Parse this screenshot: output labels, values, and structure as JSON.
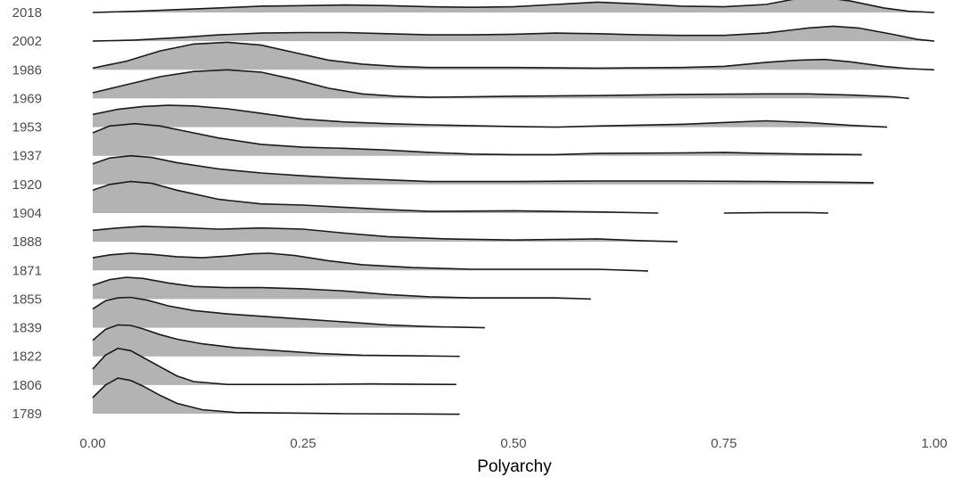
{
  "chart_data": {
    "type": "ridgeline",
    "title": "",
    "xlabel": "Polyarchy",
    "ylabel": "",
    "xlim": [
      0,
      1
    ],
    "x_ticks": [
      {
        "value": 0,
        "label": "0.00"
      },
      {
        "value": 0.25,
        "label": "0.25"
      },
      {
        "value": 0.5,
        "label": "0.50"
      },
      {
        "value": 0.75,
        "label": "0.75"
      },
      {
        "value": 1,
        "label": "1.00"
      }
    ],
    "grid": false,
    "legend": "none",
    "fill_color": "#b3b3b3",
    "line_color": "#1a1a1a",
    "series": [
      {
        "name": "1789",
        "segments": [
          [
            [
              0,
              0.28
            ],
            [
              0.015,
              0.5
            ],
            [
              0.03,
              0.62
            ],
            [
              0.045,
              0.58
            ],
            [
              0.06,
              0.48
            ],
            [
              0.08,
              0.32
            ],
            [
              0.1,
              0.18
            ],
            [
              0.13,
              0.07
            ],
            [
              0.17,
              0.02
            ],
            [
              0.25,
              0.01
            ],
            [
              0.3,
              0.0
            ],
            [
              0.38,
              -0.005
            ],
            [
              0.436,
              -0.01
            ]
          ]
        ]
      },
      {
        "name": "1806",
        "segments": [
          [
            [
              0,
              0.28
            ],
            [
              0.015,
              0.52
            ],
            [
              0.03,
              0.64
            ],
            [
              0.045,
              0.6
            ],
            [
              0.06,
              0.48
            ],
            [
              0.08,
              0.32
            ],
            [
              0.1,
              0.16
            ],
            [
              0.12,
              0.06
            ],
            [
              0.16,
              0.01
            ],
            [
              0.25,
              0.01
            ],
            [
              0.33,
              0.02
            ],
            [
              0.38,
              0.015
            ],
            [
              0.432,
              0.01
            ]
          ]
        ]
      },
      {
        "name": "1822",
        "segments": [
          [
            [
              0,
              0.28
            ],
            [
              0.015,
              0.47
            ],
            [
              0.03,
              0.55
            ],
            [
              0.045,
              0.54
            ],
            [
              0.06,
              0.48
            ],
            [
              0.08,
              0.38
            ],
            [
              0.1,
              0.3
            ],
            [
              0.13,
              0.22
            ],
            [
              0.17,
              0.15
            ],
            [
              0.22,
              0.1
            ],
            [
              0.27,
              0.05
            ],
            [
              0.32,
              0.02
            ],
            [
              0.38,
              0.01
            ],
            [
              0.436,
              0.0
            ]
          ]
        ]
      },
      {
        "name": "1839",
        "segments": [
          [
            [
              0,
              0.33
            ],
            [
              0.015,
              0.47
            ],
            [
              0.03,
              0.52
            ],
            [
              0.045,
              0.53
            ],
            [
              0.065,
              0.48
            ],
            [
              0.09,
              0.38
            ],
            [
              0.12,
              0.3
            ],
            [
              0.16,
              0.24
            ],
            [
              0.2,
              0.2
            ],
            [
              0.25,
              0.15
            ],
            [
              0.3,
              0.1
            ],
            [
              0.35,
              0.05
            ],
            [
              0.4,
              0.02
            ],
            [
              0.466,
              0.0
            ]
          ]
        ]
      },
      {
        "name": "1871",
        "segments": [
          [
            [
              0,
              0.22
            ],
            [
              0.02,
              0.27
            ],
            [
              0.045,
              0.3
            ],
            [
              0.07,
              0.28
            ],
            [
              0.1,
              0.24
            ],
            [
              0.13,
              0.22
            ],
            [
              0.16,
              0.25
            ],
            [
              0.19,
              0.29
            ],
            [
              0.21,
              0.3
            ],
            [
              0.24,
              0.26
            ],
            [
              0.28,
              0.17
            ],
            [
              0.32,
              0.1
            ],
            [
              0.38,
              0.05
            ],
            [
              0.45,
              0.02
            ],
            [
              0.55,
              0.02
            ],
            [
              0.6,
              0.02
            ],
            [
              0.66,
              -0.01
            ]
          ]
        ]
      },
      {
        "name": "1855",
        "segments": [
          [
            [
              0,
              0.24
            ],
            [
              0.02,
              0.34
            ],
            [
              0.04,
              0.38
            ],
            [
              0.06,
              0.36
            ],
            [
              0.09,
              0.28
            ],
            [
              0.12,
              0.22
            ],
            [
              0.16,
              0.2
            ],
            [
              0.2,
              0.2
            ],
            [
              0.25,
              0.18
            ],
            [
              0.3,
              0.14
            ],
            [
              0.35,
              0.08
            ],
            [
              0.4,
              0.04
            ],
            [
              0.45,
              0.02
            ],
            [
              0.5,
              0.02
            ],
            [
              0.55,
              0.02
            ],
            [
              0.592,
              0.0
            ]
          ]
        ]
      },
      {
        "name": "1888",
        "segments": [
          [
            [
              0,
              0.2
            ],
            [
              0.03,
              0.24
            ],
            [
              0.06,
              0.27
            ],
            [
              0.1,
              0.25
            ],
            [
              0.15,
              0.22
            ],
            [
              0.2,
              0.24
            ],
            [
              0.25,
              0.22
            ],
            [
              0.3,
              0.15
            ],
            [
              0.35,
              0.09
            ],
            [
              0.42,
              0.05
            ],
            [
              0.5,
              0.03
            ],
            [
              0.55,
              0.04
            ],
            [
              0.6,
              0.05
            ],
            [
              0.65,
              0.02
            ],
            [
              0.695,
              0.0
            ]
          ]
        ]
      },
      {
        "name": "1904",
        "segments": [
          [
            [
              0,
              0.4
            ],
            [
              0.02,
              0.5
            ],
            [
              0.045,
              0.55
            ],
            [
              0.07,
              0.52
            ],
            [
              0.1,
              0.4
            ],
            [
              0.15,
              0.24
            ],
            [
              0.2,
              0.16
            ],
            [
              0.25,
              0.14
            ],
            [
              0.3,
              0.1
            ],
            [
              0.35,
              0.06
            ],
            [
              0.4,
              0.03
            ],
            [
              0.5,
              0.04
            ],
            [
              0.55,
              0.03
            ],
            [
              0.6,
              0.02
            ],
            [
              0.672,
              0.0
            ]
          ],
          [
            [
              0.75,
              0.0
            ],
            [
              0.8,
              0.01
            ],
            [
              0.85,
              0.01
            ],
            [
              0.874,
              0.0
            ]
          ]
        ]
      },
      {
        "name": "1920",
        "segments": [
          [
            [
              0,
              0.36
            ],
            [
              0.02,
              0.46
            ],
            [
              0.045,
              0.5
            ],
            [
              0.07,
              0.47
            ],
            [
              0.1,
              0.38
            ],
            [
              0.15,
              0.27
            ],
            [
              0.2,
              0.2
            ],
            [
              0.25,
              0.15
            ],
            [
              0.3,
              0.11
            ],
            [
              0.35,
              0.08
            ],
            [
              0.4,
              0.05
            ],
            [
              0.5,
              0.05
            ],
            [
              0.6,
              0.06
            ],
            [
              0.7,
              0.06
            ],
            [
              0.8,
              0.05
            ],
            [
              0.88,
              0.04
            ],
            [
              0.928,
              0.03
            ]
          ]
        ]
      },
      {
        "name": "1937",
        "segments": [
          [
            [
              0,
              0.4
            ],
            [
              0.02,
              0.52
            ],
            [
              0.05,
              0.56
            ],
            [
              0.08,
              0.52
            ],
            [
              0.11,
              0.43
            ],
            [
              0.15,
              0.31
            ],
            [
              0.2,
              0.2
            ],
            [
              0.25,
              0.15
            ],
            [
              0.3,
              0.13
            ],
            [
              0.35,
              0.1
            ],
            [
              0.4,
              0.06
            ],
            [
              0.45,
              0.03
            ],
            [
              0.5,
              0.02
            ],
            [
              0.55,
              0.02
            ],
            [
              0.6,
              0.04
            ],
            [
              0.7,
              0.05
            ],
            [
              0.75,
              0.06
            ],
            [
              0.8,
              0.04
            ],
            [
              0.85,
              0.03
            ],
            [
              0.914,
              0.02
            ]
          ]
        ]
      },
      {
        "name": "1953",
        "segments": [
          [
            [
              0,
              0.22
            ],
            [
              0.03,
              0.31
            ],
            [
              0.06,
              0.36
            ],
            [
              0.09,
              0.38
            ],
            [
              0.12,
              0.37
            ],
            [
              0.16,
              0.32
            ],
            [
              0.2,
              0.24
            ],
            [
              0.25,
              0.14
            ],
            [
              0.3,
              0.09
            ],
            [
              0.35,
              0.06
            ],
            [
              0.4,
              0.04
            ],
            [
              0.5,
              0.01
            ],
            [
              0.55,
              0.0
            ],
            [
              0.6,
              0.02
            ],
            [
              0.7,
              0.05
            ],
            [
              0.75,
              0.08
            ],
            [
              0.8,
              0.11
            ],
            [
              0.85,
              0.08
            ],
            [
              0.9,
              0.03
            ],
            [
              0.944,
              0.0
            ]
          ]
        ]
      },
      {
        "name": "1969",
        "segments": [
          [
            [
              0,
              0.1
            ],
            [
              0.04,
              0.24
            ],
            [
              0.08,
              0.38
            ],
            [
              0.12,
              0.47
            ],
            [
              0.16,
              0.5
            ],
            [
              0.2,
              0.46
            ],
            [
              0.24,
              0.33
            ],
            [
              0.28,
              0.18
            ],
            [
              0.32,
              0.08
            ],
            [
              0.36,
              0.04
            ],
            [
              0.4,
              0.02
            ],
            [
              0.5,
              0.04
            ],
            [
              0.6,
              0.05
            ],
            [
              0.7,
              0.07
            ],
            [
              0.8,
              0.08
            ],
            [
              0.85,
              0.08
            ],
            [
              0.9,
              0.06
            ],
            [
              0.95,
              0.03
            ],
            [
              0.97,
              0.0
            ]
          ]
        ]
      },
      {
        "name": "1986",
        "segments": [
          [
            [
              0,
              0.03
            ],
            [
              0.04,
              0.15
            ],
            [
              0.08,
              0.33
            ],
            [
              0.12,
              0.45
            ],
            [
              0.16,
              0.48
            ],
            [
              0.2,
              0.43
            ],
            [
              0.24,
              0.3
            ],
            [
              0.28,
              0.17
            ],
            [
              0.32,
              0.1
            ],
            [
              0.36,
              0.06
            ],
            [
              0.4,
              0.04
            ],
            [
              0.5,
              0.04
            ],
            [
              0.6,
              0.03
            ],
            [
              0.7,
              0.04
            ],
            [
              0.75,
              0.06
            ],
            [
              0.8,
              0.13
            ],
            [
              0.84,
              0.17
            ],
            [
              0.87,
              0.18
            ],
            [
              0.9,
              0.14
            ],
            [
              0.94,
              0.06
            ],
            [
              0.97,
              0.02
            ],
            [
              1.0,
              0.0
            ]
          ]
        ]
      },
      {
        "name": "2002",
        "segments": [
          [
            [
              0,
              0.0
            ],
            [
              0.05,
              0.02
            ],
            [
              0.1,
              0.06
            ],
            [
              0.15,
              0.11
            ],
            [
              0.2,
              0.14
            ],
            [
              0.25,
              0.15
            ],
            [
              0.3,
              0.15
            ],
            [
              0.35,
              0.13
            ],
            [
              0.4,
              0.11
            ],
            [
              0.45,
              0.11
            ],
            [
              0.5,
              0.12
            ],
            [
              0.55,
              0.14
            ],
            [
              0.6,
              0.13
            ],
            [
              0.65,
              0.11
            ],
            [
              0.7,
              0.1
            ],
            [
              0.75,
              0.1
            ],
            [
              0.8,
              0.14
            ],
            [
              0.85,
              0.23
            ],
            [
              0.88,
              0.26
            ],
            [
              0.91,
              0.23
            ],
            [
              0.95,
              0.12
            ],
            [
              0.98,
              0.03
            ],
            [
              1.0,
              0.0
            ]
          ]
        ]
      },
      {
        "name": "2018",
        "segments": [
          [
            [
              0,
              0.0
            ],
            [
              0.05,
              0.02
            ],
            [
              0.1,
              0.05
            ],
            [
              0.15,
              0.08
            ],
            [
              0.2,
              0.11
            ],
            [
              0.25,
              0.12
            ],
            [
              0.3,
              0.13
            ],
            [
              0.35,
              0.12
            ],
            [
              0.4,
              0.1
            ],
            [
              0.45,
              0.09
            ],
            [
              0.5,
              0.1
            ],
            [
              0.55,
              0.14
            ],
            [
              0.6,
              0.18
            ],
            [
              0.65,
              0.15
            ],
            [
              0.7,
              0.11
            ],
            [
              0.75,
              0.1
            ],
            [
              0.8,
              0.14
            ],
            [
              0.84,
              0.25
            ],
            [
              0.87,
              0.26
            ],
            [
              0.9,
              0.2
            ],
            [
              0.94,
              0.08
            ],
            [
              0.97,
              0.02
            ],
            [
              1.0,
              0.0
            ]
          ]
        ]
      }
    ]
  }
}
